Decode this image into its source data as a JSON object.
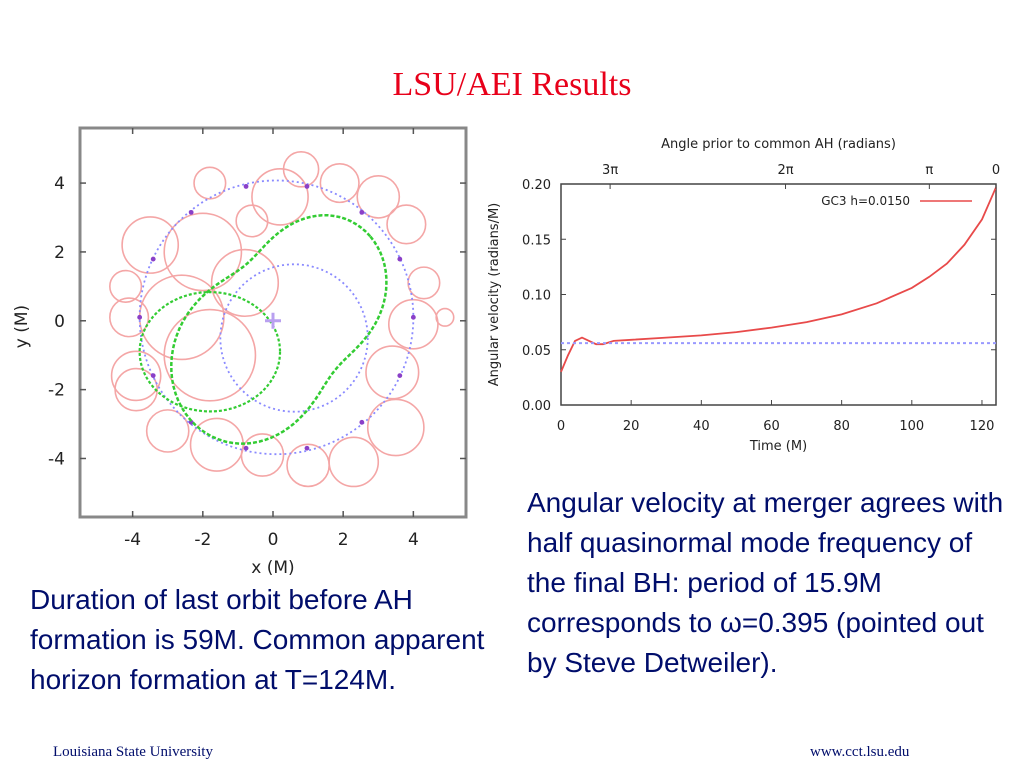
{
  "slide": {
    "title": "LSU/AEI Results",
    "left_text": "Duration of last orbit before AH formation is 59M. Common apparent horizon formation at T=124M.",
    "right_text": "Angular velocity at merger agrees with half quasinormal mode frequency of the final BH: period of 15.9M corresponds to ω=0.395 (pointed out by Steve Detweiler).",
    "footer_left": "Louisiana State University",
    "footer_right": "www.cct.lsu.edu"
  },
  "chart_data": [
    {
      "type": "scatter",
      "xlabel": "x (M)",
      "ylabel": "y (M)",
      "xlim": [
        -5.5,
        5.5
      ],
      "ylim": [
        -5.7,
        5.6
      ],
      "xticks": [
        "-4",
        "-2",
        "0",
        "2",
        "4"
      ],
      "yticks": [
        "4",
        "2",
        "0",
        "-2",
        "-4"
      ],
      "colors": {
        "circles": "#f4a6a6",
        "green": "#33cc33",
        "blue": "#8a8aff",
        "purple": "#8a40c8"
      }
    },
    {
      "type": "line",
      "title": "Angle prior to common AH (radians)",
      "xlabel": "Time (M)",
      "ylabel": "Angular velocity (radians/M)",
      "xlim": [
        0,
        124
      ],
      "ylim": [
        0,
        0.2
      ],
      "xticks": [
        "0",
        "20",
        "40",
        "60",
        "80",
        "100",
        "120"
      ],
      "yticks": [
        "0.00",
        "0.05",
        "0.10",
        "0.15",
        "0.20"
      ],
      "top_ticks": [
        "3π",
        "2π",
        "π",
        "0"
      ],
      "series": [
        {
          "name": "GC3 h=0.0150",
          "color": "#e84a4a",
          "x": [
            0,
            2,
            4,
            6,
            8,
            10,
            12,
            15,
            20,
            30,
            40,
            50,
            60,
            70,
            80,
            90,
            100,
            105,
            110,
            115,
            120,
            124
          ],
          "y": [
            0.03,
            0.045,
            0.058,
            0.061,
            0.058,
            0.055,
            0.055,
            0.058,
            0.059,
            0.061,
            0.063,
            0.066,
            0.07,
            0.075,
            0.082,
            0.092,
            0.106,
            0.116,
            0.128,
            0.145,
            0.168,
            0.197
          ]
        },
        {
          "name": "",
          "color": "#9999ff",
          "x": [
            0,
            124
          ],
          "y": [
            0.056,
            0.056
          ]
        }
      ]
    }
  ]
}
